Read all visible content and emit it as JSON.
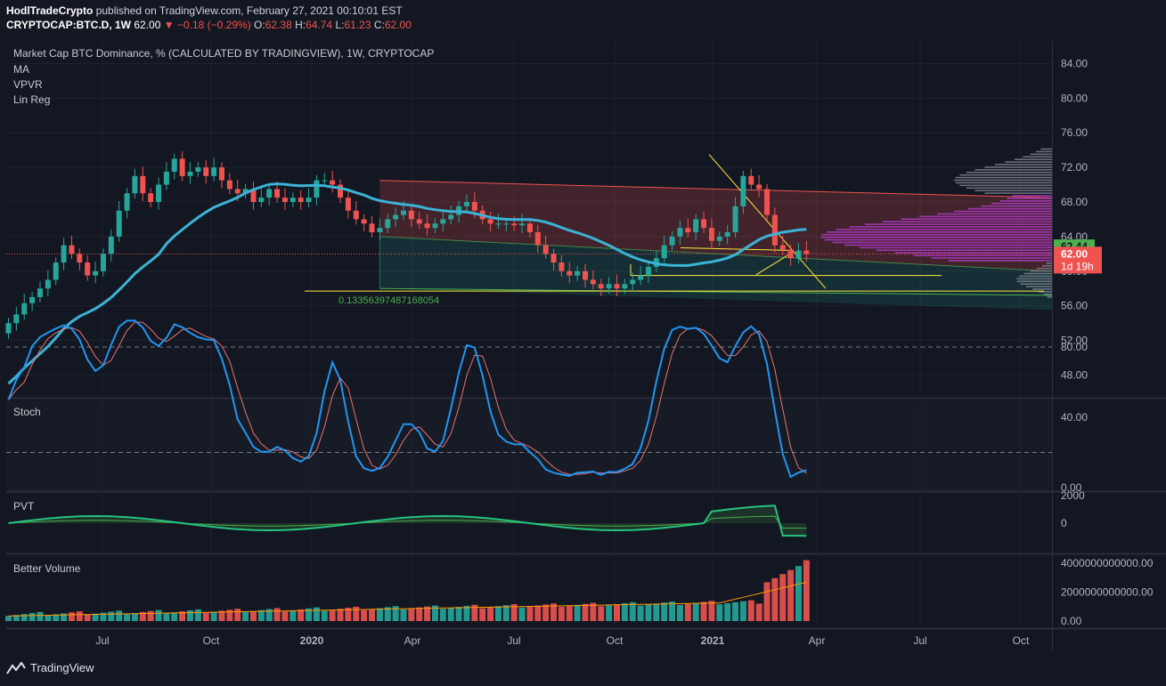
{
  "header": {
    "author": "HodlTradeCrypto",
    "published": "published on TradingView.com, February 27, 2021 00:10:01 EST",
    "symbol": "CRYPTOCAP:BTC.D, 1W",
    "last": "62.00",
    "change": "−0.18 (−0.29%)",
    "o_label": "O:",
    "o_value": "62.38",
    "h_label": "H:",
    "h_value": "64.74",
    "l_label": "L:",
    "l_value": "61.23",
    "c_label": "C:",
    "c_value": "62.00"
  },
  "legend": {
    "title": "Market Cap BTC Dominance, % (CALCULATED BY TRADINGVIEW), 1W, CRYPTOCAP",
    "items": [
      "MA",
      "VPVR",
      "Lin Reg"
    ]
  },
  "brand": {
    "name": "TradingView"
  },
  "colors": {
    "up": "#26a69a",
    "down": "#ef5350",
    "ma": "#3bb3d6",
    "fib": "#ffeb3b",
    "vp": "#b03ac9"
  },
  "chart_data": [
    {
      "type": "candlestick",
      "title": "Market Cap BTC Dominance, % (CALCULATED BY TRADINGVIEW), 1W, CRYPTOCAP",
      "x_tick_labels": [
        "Jul",
        "Oct",
        "2020",
        "Apr",
        "Jul",
        "Oct",
        "2021",
        "Apr",
        "Jul",
        "Oct"
      ],
      "y_tick_labels": [
        "84.00",
        "80.00",
        "76.00",
        "72.00",
        "68.00",
        "64.00",
        "60.00",
        "56.00",
        "52.00",
        "48.00"
      ],
      "ylim": [
        45.5,
        86.5
      ],
      "close": [
        54,
        55,
        56.3,
        57,
        58,
        59,
        61,
        63,
        62,
        61,
        59.5,
        60,
        62,
        64,
        67,
        69,
        71,
        69,
        68,
        70,
        71.5,
        73,
        71,
        71.5,
        72,
        71,
        72,
        70.5,
        69.5,
        69,
        69.5,
        68,
        68.5,
        69.5,
        68.5,
        68,
        68.5,
        68,
        68.5,
        70.5,
        70.5,
        70,
        68.5,
        67,
        66,
        65.5,
        64.5,
        65,
        66,
        66.5,
        67,
        66,
        65.5,
        65,
        65.5,
        66,
        66.5,
        67.5,
        68,
        67,
        66,
        65.5,
        65.5,
        65.5,
        65.3,
        65.5,
        64.5,
        63,
        62,
        61,
        60,
        59.5,
        60,
        59,
        58.5,
        58,
        58.5,
        58,
        58.5,
        59,
        59.5,
        60.5,
        61.5,
        63,
        64,
        65,
        64.5,
        66,
        65,
        63.5,
        64,
        64.5,
        67.5,
        71,
        70,
        69.5,
        66.5,
        63,
        62.5,
        61.5,
        62.38,
        62
      ],
      "current_price": "62.00",
      "countdown": "1d 19h",
      "ma_label": "62.44",
      "fib_text": "0.13356397487168054",
      "lin_reg_band": {
        "start_week": 47,
        "upper": [
          70.5,
          68.5
        ],
        "mid": [
          64,
          60
        ],
        "lower": [
          58,
          55.5
        ]
      },
      "wedge": {
        "top": [
          73.5,
          60.5
        ],
        "bottom": [
          59.5,
          61.5
        ]
      }
    },
    {
      "type": "line",
      "title": "Stoch",
      "y_tick_labels": [
        "80.00",
        "40.00",
        "0.00"
      ],
      "ylim": [
        0,
        100
      ]
    },
    {
      "type": "area",
      "title": "PVT",
      "y_tick_labels": [
        "2000",
        "0"
      ]
    },
    {
      "type": "bar",
      "title": "Better Volume",
      "y_tick_labels": [
        "4000000000000.00",
        "2000000000000.00",
        "0.00"
      ],
      "ylim": [
        0,
        4300000000000
      ]
    }
  ]
}
